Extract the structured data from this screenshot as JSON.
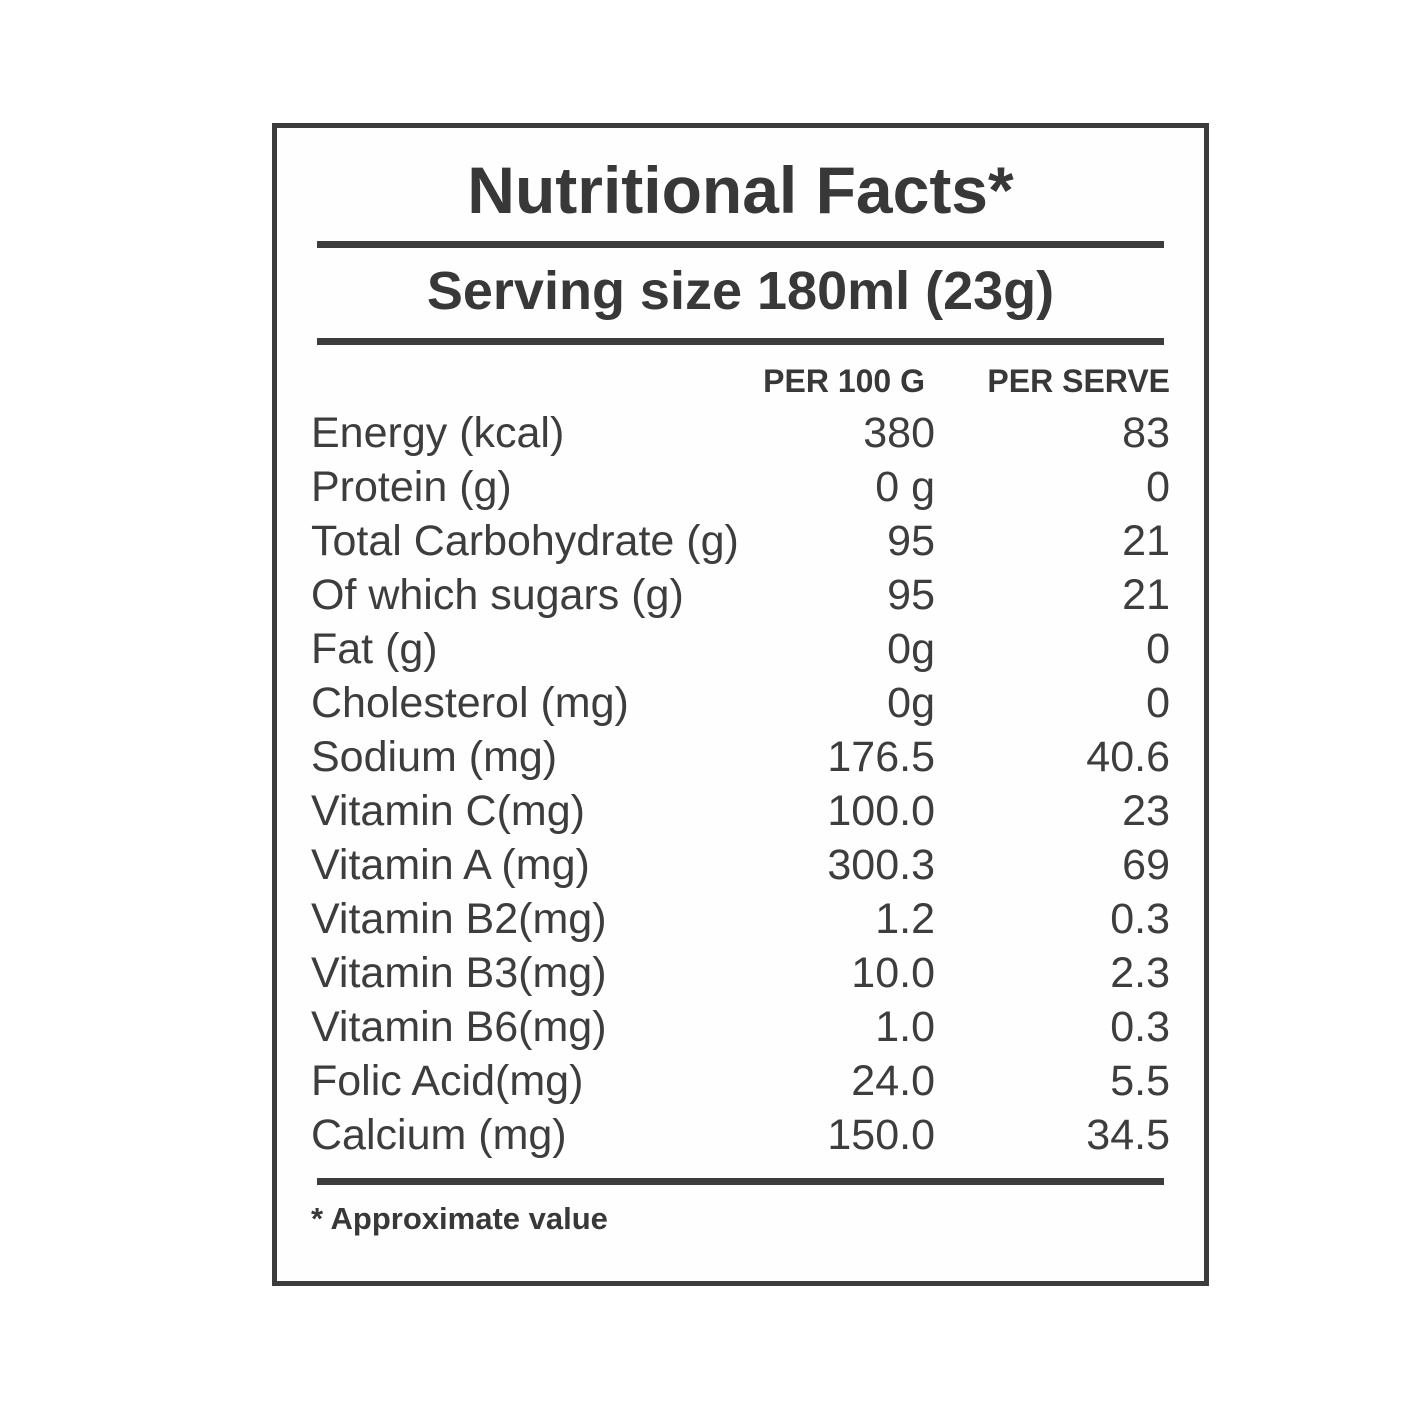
{
  "label": {
    "title": "Nutritional Facts*",
    "serving_line": "Serving size 180ml (23g)",
    "columns": {
      "per_100g": "PER 100 G",
      "per_serve": "PER SERVE"
    },
    "rows": [
      {
        "name": "Energy (kcal)",
        "per_100g": "380",
        "per_serve": "83"
      },
      {
        "name": "Protein (g)",
        "per_100g": "0 g",
        "per_serve": "0"
      },
      {
        "name": "Total Carbohydrate (g)",
        "per_100g": "95",
        "per_serve": "21"
      },
      {
        "name": "Of which sugars (g)",
        "per_100g": "95",
        "per_serve": "21"
      },
      {
        "name": "Fat (g)",
        "per_100g": "0g",
        "per_serve": "0"
      },
      {
        "name": "Cholesterol (mg)",
        "per_100g": "0g",
        "per_serve": "0"
      },
      {
        "name": "Sodium (mg)",
        "per_100g": "176.5",
        "per_serve": "40.6"
      },
      {
        "name": "Vitamin C(mg)",
        "per_100g": "100.0",
        "per_serve": "23"
      },
      {
        "name": "Vitamin A (mg)",
        "per_100g": "300.3",
        "per_serve": "69"
      },
      {
        "name": "Vitamin B2(mg)",
        "per_100g": "1.2",
        "per_serve": "0.3"
      },
      {
        "name": "Vitamin B3(mg)",
        "per_100g": "10.0",
        "per_serve": "2.3"
      },
      {
        "name": "Vitamin B6(mg)",
        "per_100g": "1.0",
        "per_serve": "0.3"
      },
      {
        "name": "Folic Acid(mg)",
        "per_100g": "24.0",
        "per_serve": "5.5"
      },
      {
        "name": "Calcium (mg)",
        "per_100g": "150.0",
        "per_serve": "34.5"
      }
    ],
    "footnote": "* Approximate value",
    "colors": {
      "text": "#3a3a3a",
      "border": "#3c3c3c",
      "background": "#ffffff"
    }
  }
}
